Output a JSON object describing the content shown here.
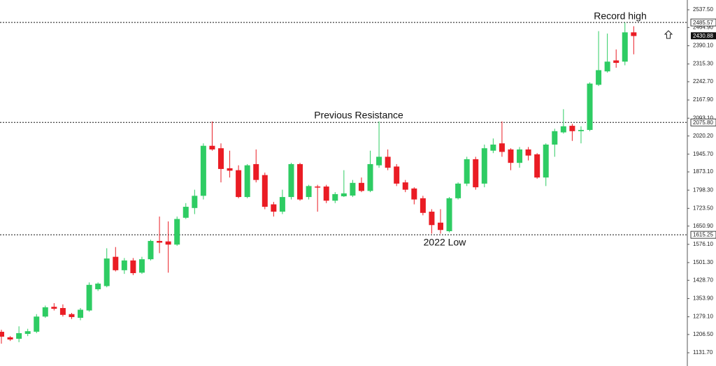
{
  "chart_data": {
    "type": "candlestick",
    "open": [
      1217.6,
      1195,
      1189,
      1209,
      1218,
      1280,
      1320,
      1315,
      1290,
      1275,
      1305,
      1392,
      1405,
      1525,
      1470,
      1510,
      1460,
      1515,
      1590,
      1588,
      1575,
      1685,
      1725,
      1775,
      1980,
      1970,
      1888,
      1880,
      1770,
      1905,
      1860,
      1740,
      1710,
      1770,
      1905,
      1770,
      1813,
      1813,
      1755,
      1773,
      1776,
      1828,
      1795,
      1900,
      1935,
      1895,
      1830,
      1805,
      1765,
      1710,
      1665,
      1630,
      1765,
      1825,
      1925,
      1825,
      1960,
      1990,
      1965,
      1910,
      1965,
      1945,
      1850,
      1985,
      2035,
      2062,
      2040,
      2045,
      2230,
      2285,
      2330,
      2325,
      2445
    ],
    "high": [
      1226,
      1200,
      1240,
      1230,
      1290,
      1325,
      1335,
      1330,
      1295,
      1315,
      1420,
      1420,
      1560,
      1565,
      1520,
      1520,
      1525,
      1595,
      1690,
      1670,
      1690,
      1745,
      1800,
      1990,
      2080,
      1990,
      1960,
      1900,
      1905,
      1965,
      1870,
      1750,
      1800,
      1910,
      1910,
      1820,
      1820,
      1820,
      1790,
      1880,
      1840,
      1850,
      1960,
      2080,
      1965,
      1905,
      1840,
      1810,
      1775,
      1720,
      1720,
      1770,
      1830,
      1935,
      1935,
      1985,
      2010,
      2080,
      1970,
      1975,
      1975,
      1950,
      1990,
      2050,
      2130,
      2070,
      2060,
      2240,
      2450,
      2440,
      2375,
      2485,
      2470
    ],
    "low": [
      1169,
      1180,
      1175,
      1200,
      1212,
      1275,
      1305,
      1280,
      1270,
      1265,
      1300,
      1385,
      1400,
      1465,
      1455,
      1450,
      1455,
      1510,
      1540,
      1460,
      1570,
      1680,
      1700,
      1760,
      1960,
      1830,
      1850,
      1765,
      1765,
      1830,
      1720,
      1690,
      1700,
      1760,
      1755,
      1760,
      1710,
      1745,
      1745,
      1770,
      1770,
      1790,
      1790,
      1890,
      1880,
      1815,
      1790,
      1740,
      1695,
      1620,
      1620,
      1625,
      1760,
      1815,
      1800,
      1810,
      1950,
      1935,
      1880,
      1890,
      1920,
      1845,
      1815,
      1935,
      2030,
      2000,
      1990,
      2040,
      2225,
      2280,
      2300,
      2310,
      2355
    ],
    "close": [
      1197.6,
      1186,
      1212,
      1220,
      1280,
      1318,
      1312,
      1287,
      1278,
      1308,
      1410,
      1415,
      1518,
      1470,
      1510,
      1458,
      1515,
      1590,
      1583,
      1575,
      1680,
      1730,
      1775,
      1980,
      1965,
      1885,
      1878,
      1770,
      1900,
      1840,
      1730,
      1710,
      1770,
      1905,
      1760,
      1815,
      1810,
      1755,
      1782,
      1785,
      1828,
      1795,
      1905,
      1935,
      1890,
      1825,
      1800,
      1760,
      1705,
      1655,
      1635,
      1765,
      1825,
      1925,
      1810,
      1970,
      1985,
      1955,
      1910,
      1965,
      1940,
      1850,
      1985,
      2040,
      2060,
      2040,
      2045,
      2235,
      2290,
      2325,
      2320,
      2445,
      2430
    ],
    "up_color": "#2ecc63",
    "down_color": "#ea1c24",
    "ylim": [
      1077.4,
      2577.6
    ],
    "yticks": [
      {
        "value": 2537.5,
        "label": "2537.50"
      },
      {
        "value": 2464.9,
        "label": "2464.90"
      },
      {
        "value": 2390.1,
        "label": "2390.10"
      },
      {
        "value": 2315.3,
        "label": "2315.30"
      },
      {
        "value": 2242.7,
        "label": "2242.70"
      },
      {
        "value": 2167.9,
        "label": "2167.90"
      },
      {
        "value": 2093.1,
        "label": "2093.10"
      },
      {
        "value": 2020.2,
        "label": "2020.20"
      },
      {
        "value": 1945.7,
        "label": "1945.70"
      },
      {
        "value": 1873.1,
        "label": "1873.10"
      },
      {
        "value": 1798.3,
        "label": "1798.30"
      },
      {
        "value": 1723.5,
        "label": "1723.50"
      },
      {
        "value": 1650.9,
        "label": "1650.90"
      },
      {
        "value": 1576.1,
        "label": "1576.10"
      },
      {
        "value": 1501.3,
        "label": "1501.30"
      },
      {
        "value": 1428.7,
        "label": "1428.70"
      },
      {
        "value": 1353.9,
        "label": "1353.90"
      },
      {
        "value": 1279.1,
        "label": "1279.10"
      },
      {
        "value": 1206.5,
        "label": "1206.50"
      },
      {
        "value": 1131.7,
        "label": "1131.70"
      }
    ],
    "levels": [
      2485.57,
      {
        "value": 2075.8,
        "label": "2075.80"
      },
      1615.25
    ],
    "last_price": 2430.88,
    "annotations": [
      "Record high",
      "Previous Resistance",
      "2022 Low"
    ]
  }
}
